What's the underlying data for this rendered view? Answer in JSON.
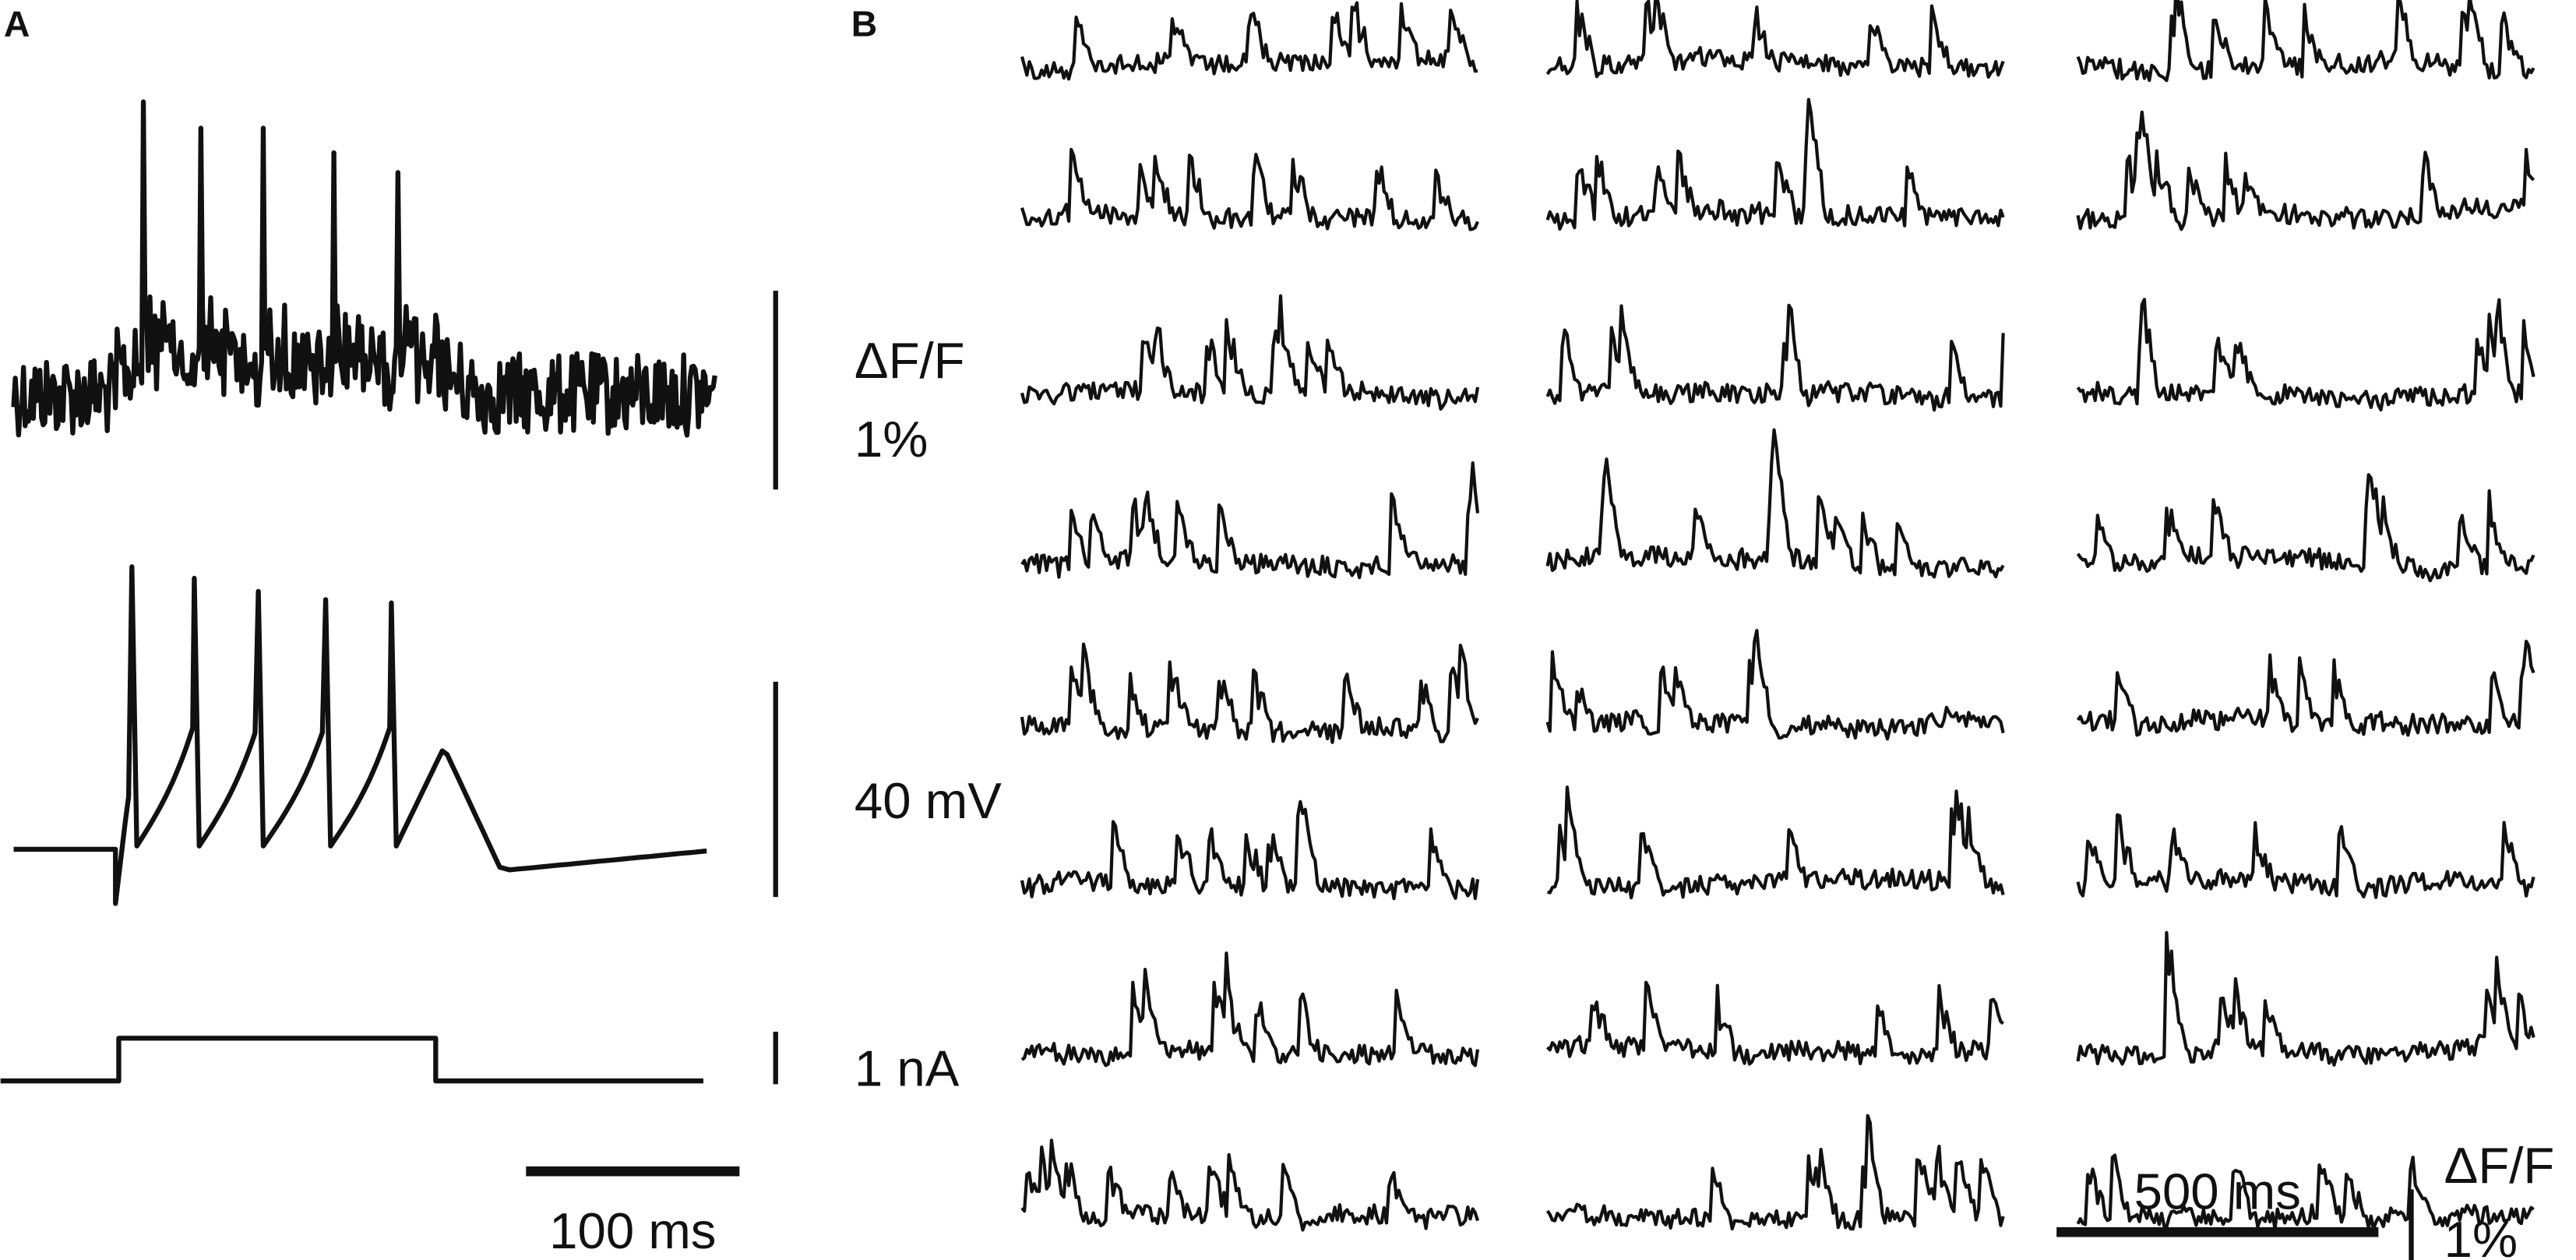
{
  "panel_a": {
    "label": "A",
    "scale_bars": {
      "fluorescence": "ΔF/F",
      "fluorescence_amount": "1%",
      "voltage": "40 mV",
      "current": "1 nA",
      "time": "100 ms"
    }
  },
  "panel_b": {
    "label": "B",
    "scale_bars": {
      "time": "500 ms",
      "fluorescence": "ΔF/F",
      "fluorescence_amount": "1%"
    }
  }
}
